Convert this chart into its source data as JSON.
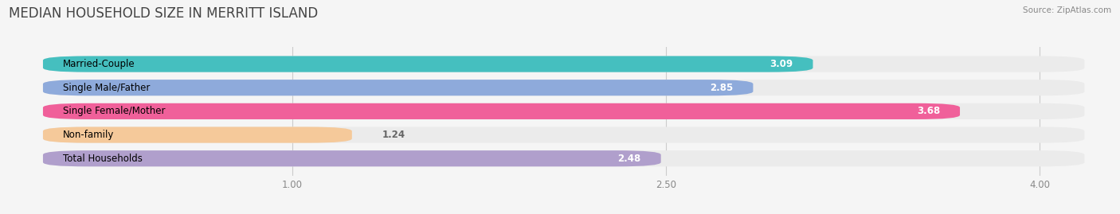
{
  "title": "MEDIAN HOUSEHOLD SIZE IN MERRITT ISLAND",
  "source": "Source: ZipAtlas.com",
  "categories": [
    "Married-Couple",
    "Single Male/Father",
    "Single Female/Mother",
    "Non-family",
    "Total Households"
  ],
  "values": [
    3.09,
    2.85,
    3.68,
    1.24,
    2.48
  ],
  "bar_colors": [
    "#45bfbf",
    "#8eaadb",
    "#f0609a",
    "#f5c99a",
    "#b09fcc"
  ],
  "bar_bg_color": "#ebebeb",
  "xlim": [
    -0.15,
    4.3
  ],
  "xdata_min": 0.0,
  "xdata_max": 4.18,
  "xticks": [
    1.0,
    2.5,
    4.0
  ],
  "xtick_labels": [
    "1.00",
    "2.50",
    "4.00"
  ],
  "title_fontsize": 12,
  "label_fontsize": 8.5,
  "value_fontsize": 8.5,
  "background_color": "#f5f5f5",
  "value_inside_threshold": 2.0
}
